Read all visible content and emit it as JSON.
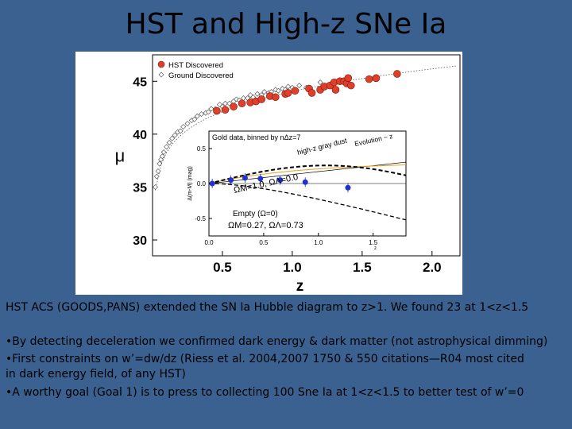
{
  "slide": {
    "title": "HST and High-z SNe Ia",
    "caption": "HST ACS (GOODS,PANS) extended the SN Ia Hubble diagram to z>1.  We found 23 at 1<z<1.5",
    "bullets": [
      "•By detecting deceleration we confirmed dark energy & dark matter (not astrophysical dimming)",
      "•First constraints on w’=dw/dz (Riess et al. 2004,2007 1750 & 550 citations—R04 most cited",
      "in dark energy field, of any HST)",
      "•A worthy goal (Goal 1) is to press to collecting 100 Sne Ia at 1<z<1.5 to better test of w’=0"
    ]
  },
  "colors": {
    "background": "#3b6191",
    "hst": "#e0402a",
    "binned": "#2233cc",
    "gray_dust": "#e8a020"
  },
  "chart_data": [
    {
      "type": "scatter",
      "xlabel": "z",
      "ylabel": "μ",
      "xlim": [
        0,
        2.2
      ],
      "ylim": [
        28.5,
        47.5
      ],
      "xticks": [
        "0.5",
        "1.0",
        "1.5",
        "2.0"
      ],
      "yticks": [
        "30",
        "35",
        "40",
        "45"
      ],
      "legend": {
        "position": "top-left",
        "entries": [
          "HST Discovered",
          "Ground Discovered"
        ]
      },
      "series": [
        {
          "name": "HST Discovered",
          "x": [
            0.46,
            0.52,
            0.58,
            0.64,
            0.7,
            0.74,
            0.78,
            0.84,
            0.88,
            0.95,
            0.97,
            1.02,
            1.12,
            1.14,
            1.2,
            1.23,
            1.27,
            1.3,
            1.31,
            1.34,
            1.37,
            1.39,
            1.4,
            1.42,
            1.55,
            1.6,
            1.75
          ],
          "y": [
            42.2,
            42.3,
            42.6,
            42.9,
            43.0,
            43.1,
            43.3,
            43.6,
            43.5,
            43.8,
            43.9,
            44.1,
            44.3,
            43.9,
            44.2,
            44.5,
            44.6,
            44.9,
            44.2,
            45.0,
            45.0,
            44.8,
            45.3,
            44.6,
            45.2,
            45.3,
            45.7
          ]
        },
        {
          "name": "Ground Discovered",
          "x": [
            0.02,
            0.03,
            0.04,
            0.05,
            0.06,
            0.07,
            0.08,
            0.1,
            0.12,
            0.14,
            0.16,
            0.18,
            0.2,
            0.22,
            0.25,
            0.28,
            0.3,
            0.32,
            0.35,
            0.38,
            0.4,
            0.42,
            0.45,
            0.48,
            0.5,
            0.52,
            0.55,
            0.58,
            0.6,
            0.62,
            0.65,
            0.68,
            0.7,
            0.72,
            0.75,
            0.78,
            0.8,
            0.83,
            0.85,
            0.88,
            0.9,
            0.93,
            0.95,
            0.97,
            1.0,
            1.05,
            1.1,
            1.2
          ],
          "y": [
            35.0,
            36.0,
            36.5,
            37.2,
            37.6,
            37.9,
            38.3,
            38.8,
            39.2,
            39.6,
            39.9,
            40.2,
            40.3,
            40.7,
            41.0,
            41.3,
            41.4,
            41.7,
            41.9,
            42.0,
            42.1,
            42.4,
            42.4,
            42.8,
            42.6,
            42.9,
            42.9,
            43.1,
            43.3,
            43.2,
            43.4,
            43.4,
            43.7,
            43.5,
            43.8,
            43.7,
            44.0,
            43.9,
            44.0,
            44.2,
            44.1,
            44.3,
            44.2,
            44.5,
            44.4,
            44.6,
            44.4,
            44.9
          ]
        }
      ]
    },
    {
      "type": "line",
      "title": "Gold data, binned by nΔz=7",
      "ylabel": "Δ(m-M) (mag)",
      "xlim": [
        0,
        1.8
      ],
      "ylim": [
        -0.75,
        0.75
      ],
      "xticks": [
        "0.0",
        "0.5",
        "1.0",
        "1.5"
      ],
      "yticks": [
        "0.5",
        "0.0",
        "-0.5"
      ],
      "annotations": [
        "high-z gray dust",
        "Evolution ~ z",
        "ΩM=1.0, ΩΛ=0.0",
        "Empty (Ω=0)",
        "ΩM=0.27, ΩΛ=0.73"
      ],
      "series": [
        {
          "name": "binned",
          "x": [
            0.03,
            0.2,
            0.33,
            0.47,
            0.65,
            0.88,
            1.27
          ],
          "y": [
            0.0,
            0.05,
            0.08,
            0.07,
            0.05,
            0.02,
            -0.06
          ]
        }
      ]
    }
  ]
}
